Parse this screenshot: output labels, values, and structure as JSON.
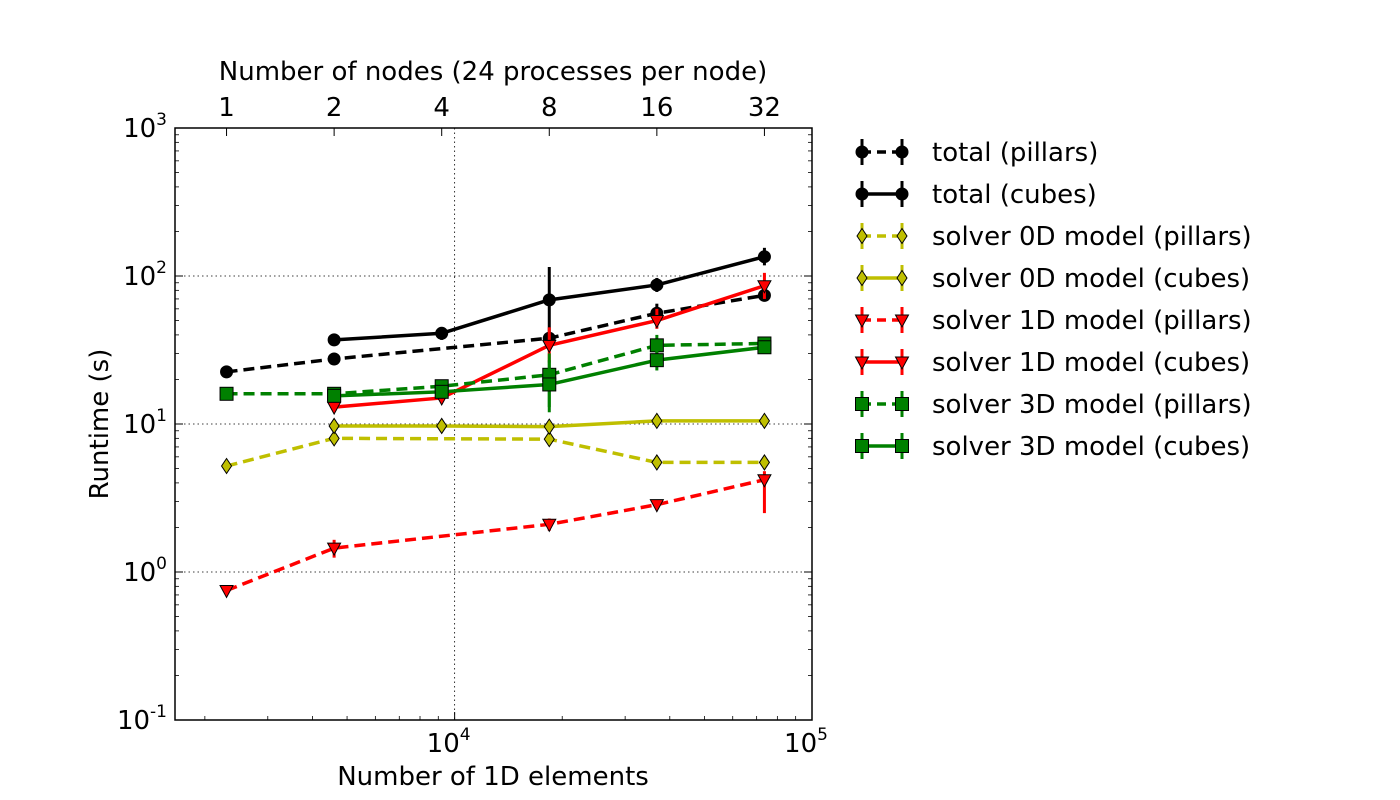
{
  "chart_data": {
    "type": "line",
    "title": "",
    "xlabel": "Number of 1D elements",
    "ylabel": "Runtime (s)",
    "top_xlabel": "Number of nodes (24 processes per node)",
    "xscale": "log",
    "yscale": "log",
    "xlim": [
      1650,
      100000
    ],
    "ylim": [
      0.1,
      1000
    ],
    "x_ticks": [
      {
        "value": 10000,
        "base": "10",
        "exp": "4"
      },
      {
        "value": 100000,
        "base": "10",
        "exp": "5"
      }
    ],
    "y_ticks": [
      {
        "value": 0.1,
        "base": "10",
        "exp": "-1"
      },
      {
        "value": 1,
        "base": "10",
        "exp": "0"
      },
      {
        "value": 10,
        "base": "10",
        "exp": "1"
      },
      {
        "value": 100,
        "base": "10",
        "exp": "2"
      },
      {
        "value": 1000,
        "base": "10",
        "exp": "3"
      }
    ],
    "top_ticks": [
      {
        "value": 2300,
        "label": "1"
      },
      {
        "value": 4600,
        "label": "2"
      },
      {
        "value": 9200,
        "label": "4"
      },
      {
        "value": 18400,
        "label": "8"
      },
      {
        "value": 36800,
        "label": "16"
      },
      {
        "value": 73600,
        "label": "32"
      }
    ],
    "grid": true,
    "legend_position": "outside-right",
    "series": [
      {
        "name": "total (pillars)",
        "color": "#000000",
        "dash": "dashed",
        "marker": "circle",
        "x": [
          2300,
          4600,
          18400,
          36800,
          73600
        ],
        "y": [
          22.5,
          27.5,
          38,
          56,
          74
        ],
        "err": [
          [
            22.5,
            22.5
          ],
          [
            27.5,
            27.5
          ],
          [
            38,
            38
          ],
          [
            48,
            65
          ],
          [
            68,
            80
          ]
        ]
      },
      {
        "name": "total (cubes)",
        "color": "#000000",
        "dash": "solid",
        "marker": "circle",
        "x": [
          4600,
          9200,
          18400,
          36800,
          73600
        ],
        "y": [
          37,
          41,
          69,
          87,
          135
        ],
        "err": [
          [
            34,
            40
          ],
          [
            37,
            45
          ],
          [
            40,
            115
          ],
          [
            78,
            97
          ],
          [
            118,
            155
          ]
        ]
      },
      {
        "name": "solver 0D model (pillars)",
        "color": "#bfbf00",
        "dash": "dashed",
        "marker": "diamond",
        "x": [
          2300,
          4600,
          18400,
          36800,
          73600
        ],
        "y": [
          5.2,
          8.0,
          7.9,
          5.5,
          5.5
        ],
        "err": [
          [
            5.2,
            5.2
          ],
          [
            8.0,
            8.0
          ],
          [
            7.9,
            7.9
          ],
          [
            5.5,
            5.5
          ],
          [
            5.5,
            5.5
          ]
        ]
      },
      {
        "name": "solver 0D model (cubes)",
        "color": "#bfbf00",
        "dash": "solid",
        "marker": "diamond",
        "x": [
          4600,
          9200,
          18400,
          36800,
          73600
        ],
        "y": [
          9.7,
          9.7,
          9.6,
          10.5,
          10.5
        ],
        "err": [
          [
            9.7,
            9.7
          ],
          [
            9.7,
            9.7
          ],
          [
            9.6,
            9.6
          ],
          [
            10.5,
            10.5
          ],
          [
            10.5,
            10.5
          ]
        ]
      },
      {
        "name": "solver 1D model (pillars)",
        "color": "#ff0000",
        "dash": "dashed",
        "marker": "triangle-down",
        "x": [
          2300,
          4600,
          18400,
          36800,
          73600
        ],
        "y": [
          0.75,
          1.45,
          2.1,
          2.85,
          4.2
        ],
        "err": [
          [
            0.75,
            0.75
          ],
          [
            1.25,
            1.65
          ],
          [
            1.9,
            2.3
          ],
          [
            2.7,
            3.0
          ],
          [
            2.5,
            4.8
          ]
        ]
      },
      {
        "name": "solver 1D model (cubes)",
        "color": "#ff0000",
        "dash": "solid",
        "marker": "triangle-down",
        "x": [
          4600,
          9200,
          18400,
          36800,
          73600
        ],
        "y": [
          13,
          15,
          34,
          50,
          86
        ],
        "err": [
          [
            13,
            13
          ],
          [
            14,
            16
          ],
          [
            26,
            45
          ],
          [
            44,
            60
          ],
          [
            70,
            105
          ]
        ]
      },
      {
        "name": "solver 3D model (pillars)",
        "color": "#008000",
        "dash": "dashed",
        "marker": "square",
        "x": [
          2300,
          4600,
          9200,
          18400,
          36800,
          73600
        ],
        "y": [
          16,
          16,
          18,
          21.5,
          34,
          35
        ],
        "err": [
          [
            16,
            16
          ],
          [
            16,
            16
          ],
          [
            17,
            19
          ],
          [
            13,
            30
          ],
          [
            29,
            40
          ],
          [
            33,
            37
          ]
        ]
      },
      {
        "name": "solver 3D model (cubes)",
        "color": "#008000",
        "dash": "solid",
        "marker": "square",
        "x": [
          4600,
          9200,
          18400,
          36800,
          73600
        ],
        "y": [
          15.5,
          16.5,
          18.5,
          27,
          33
        ],
        "err": [
          [
            15.5,
            15.5
          ],
          [
            15.5,
            17.5
          ],
          [
            12,
            27
          ],
          [
            23,
            32
          ],
          [
            31,
            35
          ]
        ]
      }
    ]
  }
}
